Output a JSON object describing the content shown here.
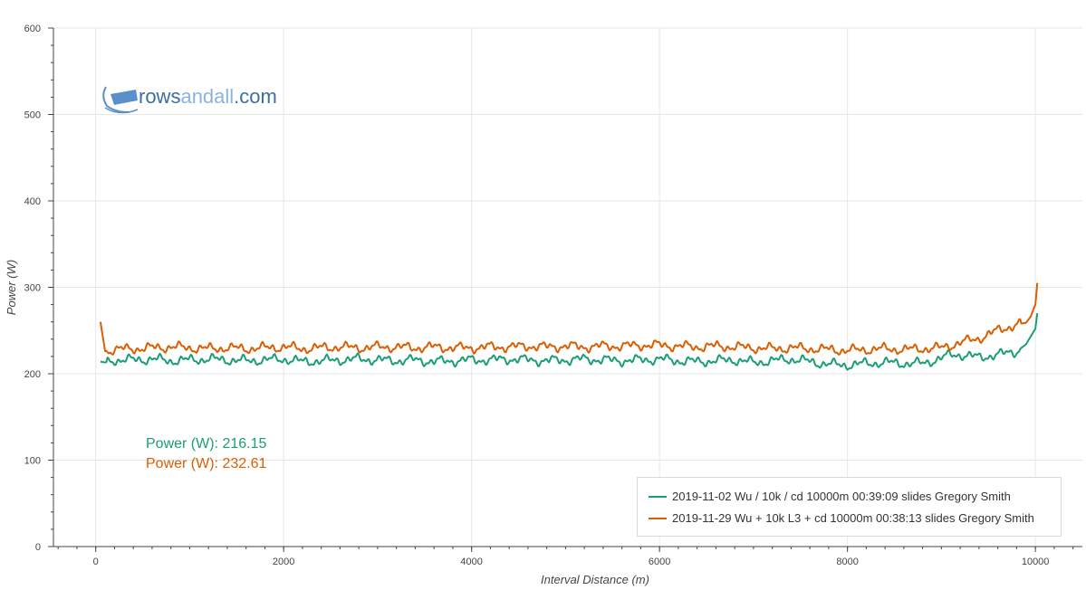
{
  "colors": {
    "series1": "#1b9e77",
    "series2": "#d95f02",
    "grid": "#e6e6e6",
    "axis": "#444444",
    "logo": "#5b8fc9"
  },
  "logo": {
    "text_dark": "rows",
    "text_light": "andall",
    "text_suffix": ".com"
  },
  "summary": [
    {
      "text": "Power (W): 216.15",
      "color": "#1b9e77"
    },
    {
      "text": "Power (W): 232.61",
      "color": "#d95f02"
    }
  ],
  "chart_data": {
    "type": "line",
    "title": "",
    "xlabel": "Interval Distance (m)",
    "ylabel": "Power (W)",
    "xlim": [
      -450,
      10500
    ],
    "ylim": [
      0,
      600
    ],
    "xticks": [
      0,
      2000,
      4000,
      6000,
      8000,
      10000
    ],
    "yticks": [
      0,
      100,
      200,
      300,
      400,
      500,
      600
    ],
    "grid": true,
    "legend_position": "bottom-right",
    "series": [
      {
        "name": "2019-11-02 Wu / 10k / cd 10000m 00:39:09 slides Gregory Smith",
        "color": "#1b9e77",
        "x": [
          50,
          100,
          200,
          400,
          600,
          800,
          1000,
          1200,
          1400,
          1600,
          1800,
          2000,
          2200,
          2400,
          2600,
          2800,
          3000,
          3200,
          3400,
          3600,
          3800,
          4000,
          4200,
          4400,
          4600,
          4800,
          5000,
          5200,
          5400,
          5600,
          5800,
          6000,
          6200,
          6400,
          6600,
          6800,
          7000,
          7200,
          7400,
          7600,
          7800,
          8000,
          8200,
          8400,
          8600,
          8800,
          9000,
          9100,
          9200,
          9400,
          9600,
          9800,
          9900,
          10000,
          10020
        ],
        "y": [
          214,
          213,
          216,
          216,
          217,
          215,
          216,
          217,
          216,
          215,
          216,
          217,
          214,
          215,
          216,
          217,
          216,
          215,
          216,
          214,
          215,
          216,
          216,
          217,
          216,
          215,
          216,
          217,
          216,
          215,
          216,
          217,
          215,
          214,
          215,
          216,
          213,
          215,
          217,
          214,
          211,
          210,
          212,
          213,
          212,
          212,
          218,
          222,
          222,
          219,
          222,
          226,
          234,
          252,
          270
        ]
      },
      {
        "name": "2019-11-29 Wu + 10k L3 + cd 10000m 00:38:13 slides Gregory Smith",
        "color": "#d95f02",
        "x": [
          50,
          100,
          200,
          400,
          600,
          800,
          1000,
          1200,
          1400,
          1600,
          1800,
          2000,
          2200,
          2400,
          2600,
          2800,
          3000,
          3200,
          3400,
          3600,
          3800,
          4000,
          4200,
          4400,
          4600,
          4800,
          5000,
          5200,
          5400,
          5600,
          5800,
          6000,
          6200,
          6400,
          6600,
          6800,
          7000,
          7200,
          7400,
          7600,
          7800,
          8000,
          8200,
          8400,
          8600,
          8800,
          9000,
          9100,
          9200,
          9400,
          9600,
          9800,
          9900,
          9950,
          10000,
          10020
        ],
        "y": [
          260,
          226,
          228,
          229,
          230,
          231,
          230,
          229,
          230,
          229,
          230,
          231,
          229,
          230,
          231,
          230,
          231,
          231,
          230,
          231,
          230,
          230,
          231,
          231,
          232,
          231,
          232,
          231,
          232,
          232,
          233,
          233,
          232,
          231,
          232,
          231,
          230,
          229,
          230,
          229,
          228,
          227,
          228,
          229,
          228,
          229,
          230,
          233,
          236,
          241,
          250,
          257,
          259,
          266,
          280,
          305
        ]
      }
    ]
  }
}
